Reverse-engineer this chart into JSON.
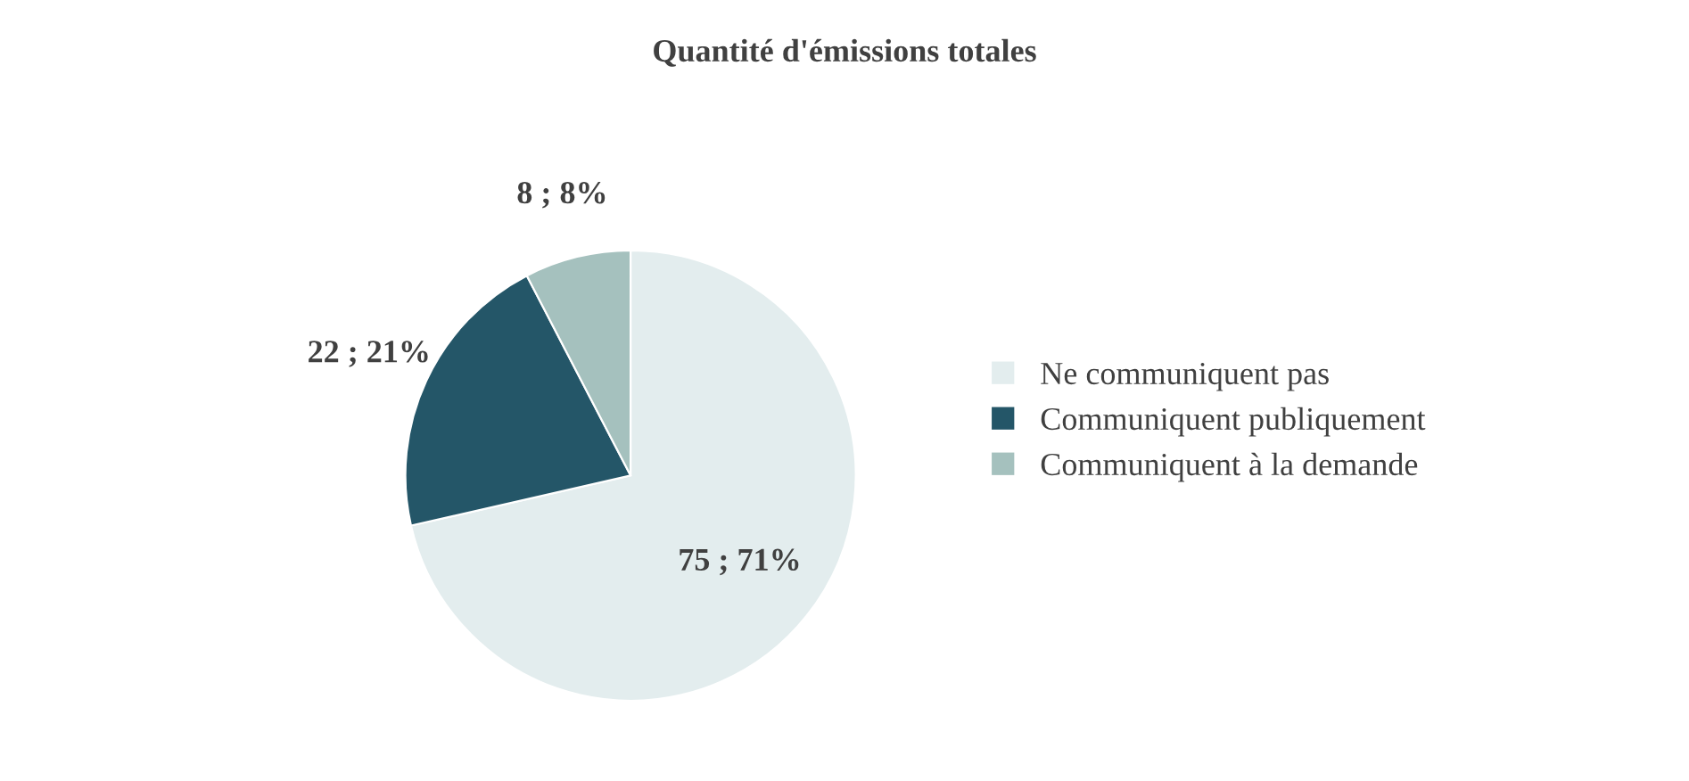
{
  "chart_data": {
    "type": "pie",
    "title": "Quantité d'émissions totales",
    "categories": [
      "Ne communiquent pas",
      "Communiquent publiquement",
      "Communiquent à la demande"
    ],
    "values": [
      75,
      22,
      8
    ],
    "colors": [
      "#e3edee",
      "#245668",
      "#a5c1be"
    ],
    "value_labels": [
      "75 ; 71%",
      "22 ; 21%",
      "8 ; 8%"
    ],
    "legend": "right"
  }
}
